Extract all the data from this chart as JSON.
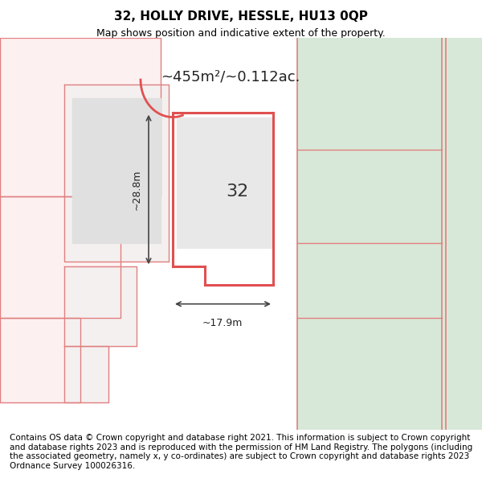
{
  "title": "32, HOLLY DRIVE, HESSLE, HU13 0QP",
  "subtitle": "Map shows position and indicative extent of the property.",
  "area_text": "~455m²/~0.112ac.",
  "dim_width": "~17.9m",
  "dim_height": "~28.8m",
  "label_number": "32",
  "footer": "Contains OS data © Crown copyright and database right 2021. This information is subject to Crown copyright and database rights 2023 and is reproduced with the permission of HM Land Registry. The polygons (including the associated geometry, namely x, y co-ordinates) are subject to Crown copyright and database rights 2023 Ordnance Survey 100026316.",
  "bg_color": "#ffffff",
  "map_bg": "#f8f8f8",
  "green_area_color": "#d8e8d8",
  "red_plot_color": "#e05050",
  "red_bg_plot_color": "#f0c8c8",
  "grey_building_color": "#d8d8d8",
  "pink_outline_color": "#e08080",
  "title_fontsize": 11,
  "subtitle_fontsize": 9,
  "footer_fontsize": 7.5
}
